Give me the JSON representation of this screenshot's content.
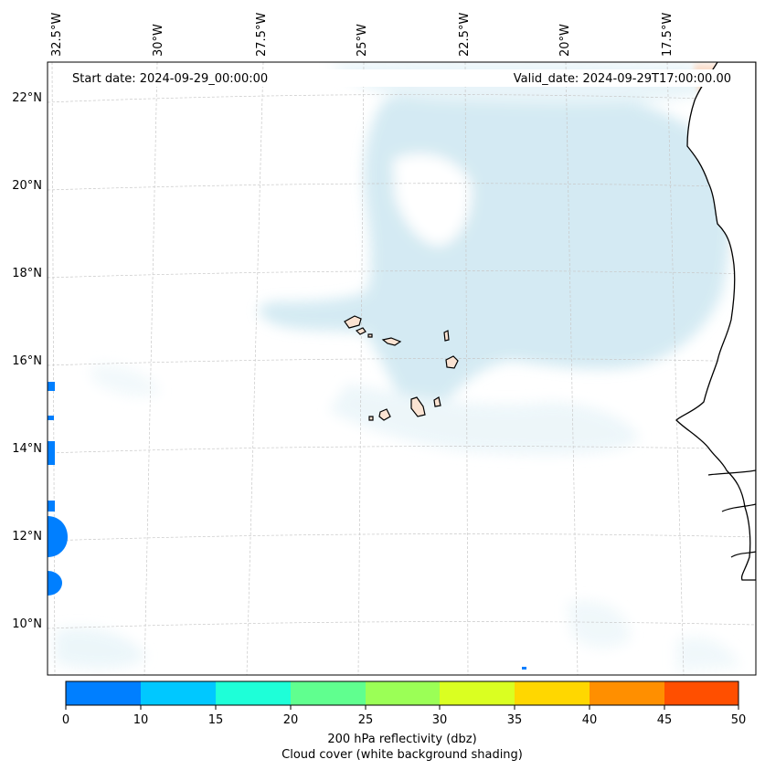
{
  "map": {
    "start_label": "Start date: 2024-09-29_00:00:00",
    "valid_label": "Valid_date: 2024-09-29T17:00:00.00",
    "lon_labels": [
      "32.5°W",
      "30°W",
      "27.5°W",
      "25°W",
      "22.5°W",
      "20°W",
      "17.5°W"
    ],
    "lat_labels": [
      "22°N",
      "20°N",
      "18°N",
      "16°N",
      "14°N",
      "12°N",
      "10°N"
    ],
    "land_color": "#fbe3d2",
    "cloud_color": "#cfe8f0"
  },
  "colorbar": {
    "ticks": [
      "0",
      "10",
      "15",
      "20",
      "25",
      "30",
      "35",
      "40",
      "45",
      "50"
    ],
    "colors": [
      "#007fff",
      "#00c8ff",
      "#1effd8",
      "#60ff8f",
      "#9bff56",
      "#daff21",
      "#ffd700",
      "#ff8f00",
      "#ff4f00"
    ],
    "label_line1": "200 hPa reflectivity (dbz)",
    "label_line2": "Cloud cover (white background shading)"
  }
}
